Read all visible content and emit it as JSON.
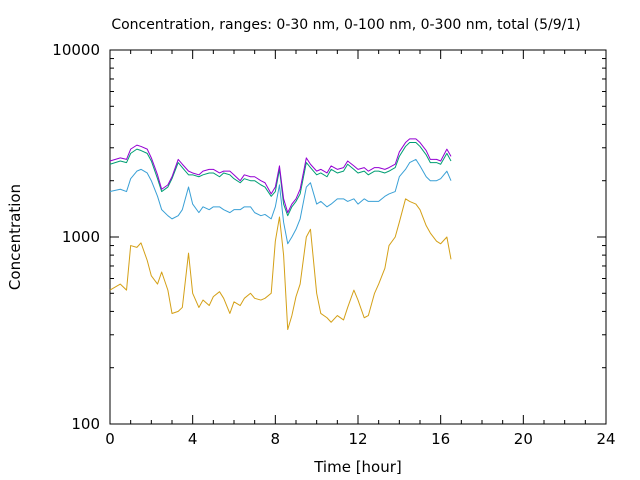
{
  "chart_data": {
    "type": "line",
    "title": "Concentration, ranges: 0-30 nm, 0-100 nm, 0-300 nm, total (5/9/1)",
    "xlabel": "Time [hour]",
    "ylabel": "Concentration",
    "xlim": [
      0,
      24
    ],
    "ylim": [
      100,
      10000
    ],
    "yscale": "log",
    "grid": false,
    "legend": "none",
    "xticks": [
      0,
      4,
      8,
      12,
      16,
      20,
      24
    ],
    "yticks": [
      100,
      1000,
      10000
    ],
    "x": [
      0,
      0.5,
      0.8,
      1.0,
      1.3,
      1.5,
      1.8,
      2.0,
      2.3,
      2.5,
      2.8,
      3.0,
      3.3,
      3.5,
      3.8,
      4.0,
      4.3,
      4.5,
      4.8,
      5.0,
      5.3,
      5.5,
      5.8,
      6.0,
      6.3,
      6.5,
      6.8,
      7.0,
      7.3,
      7.5,
      7.8,
      8.0,
      8.2,
      8.4,
      8.6,
      8.8,
      9.0,
      9.2,
      9.5,
      9.7,
      10.0,
      10.2,
      10.5,
      10.7,
      11.0,
      11.3,
      11.5,
      11.8,
      12.0,
      12.3,
      12.5,
      12.8,
      13.0,
      13.3,
      13.5,
      13.8,
      14.0,
      14.3,
      14.5,
      14.8,
      15.0,
      15.3,
      15.5,
      15.8,
      16.0,
      16.3,
      16.5
    ],
    "series": [
      {
        "color": "#d4a017",
        "values": [
          520,
          560,
          520,
          900,
          880,
          930,
          750,
          620,
          560,
          650,
          520,
          390,
          400,
          420,
          820,
          500,
          420,
          460,
          430,
          480,
          510,
          470,
          390,
          450,
          430,
          470,
          500,
          470,
          460,
          470,
          500,
          950,
          1280,
          800,
          320,
          380,
          480,
          560,
          1000,
          1100,
          500,
          390,
          370,
          350,
          380,
          360,
          420,
          520,
          460,
          370,
          380,
          500,
          560,
          680,
          900,
          1000,
          1200,
          1600,
          1550,
          1500,
          1400,
          1150,
          1050,
          950,
          920,
          1000,
          760
        ]
      },
      {
        "color": "#3aa0d6",
        "values": [
          1750,
          1800,
          1750,
          2050,
          2250,
          2300,
          2200,
          2000,
          1650,
          1400,
          1300,
          1250,
          1300,
          1400,
          1850,
          1500,
          1350,
          1450,
          1400,
          1450,
          1450,
          1400,
          1350,
          1400,
          1400,
          1450,
          1450,
          1350,
          1300,
          1320,
          1250,
          1450,
          1900,
          1200,
          920,
          1000,
          1100,
          1250,
          1850,
          1950,
          1500,
          1550,
          1450,
          1500,
          1600,
          1600,
          1550,
          1600,
          1500,
          1600,
          1550,
          1550,
          1550,
          1650,
          1700,
          1750,
          2100,
          2300,
          2500,
          2600,
          2400,
          2100,
          2000,
          2000,
          2050,
          2250,
          2000
        ]
      },
      {
        "color": "#009e73",
        "values": [
          2450,
          2550,
          2500,
          2800,
          2950,
          2900,
          2800,
          2550,
          2050,
          1750,
          1850,
          2050,
          2500,
          2350,
          2150,
          2150,
          2100,
          2150,
          2200,
          2200,
          2100,
          2200,
          2150,
          2050,
          1950,
          2050,
          2000,
          2000,
          1900,
          1850,
          1650,
          1750,
          2300,
          1500,
          1300,
          1450,
          1550,
          1700,
          2500,
          2350,
          2150,
          2200,
          2100,
          2300,
          2200,
          2250,
          2450,
          2300,
          2200,
          2250,
          2150,
          2250,
          2250,
          2200,
          2250,
          2350,
          2700,
          3050,
          3200,
          3200,
          3050,
          2750,
          2500,
          2500,
          2450,
          2800,
          2550
        ]
      },
      {
        "color": "#9400d3",
        "values": [
          2550,
          2650,
          2600,
          2950,
          3100,
          3050,
          2950,
          2650,
          2150,
          1800,
          1900,
          2100,
          2600,
          2450,
          2250,
          2200,
          2150,
          2250,
          2300,
          2300,
          2200,
          2250,
          2250,
          2150,
          2000,
          2150,
          2100,
          2100,
          2000,
          1950,
          1700,
          1850,
          2400,
          1600,
          1350,
          1500,
          1600,
          1800,
          2650,
          2450,
          2250,
          2300,
          2200,
          2400,
          2300,
          2350,
          2550,
          2400,
          2300,
          2350,
          2250,
          2350,
          2350,
          2300,
          2350,
          2450,
          2850,
          3200,
          3350,
          3350,
          3200,
          2900,
          2600,
          2600,
          2550,
          2950,
          2700
        ]
      }
    ]
  }
}
